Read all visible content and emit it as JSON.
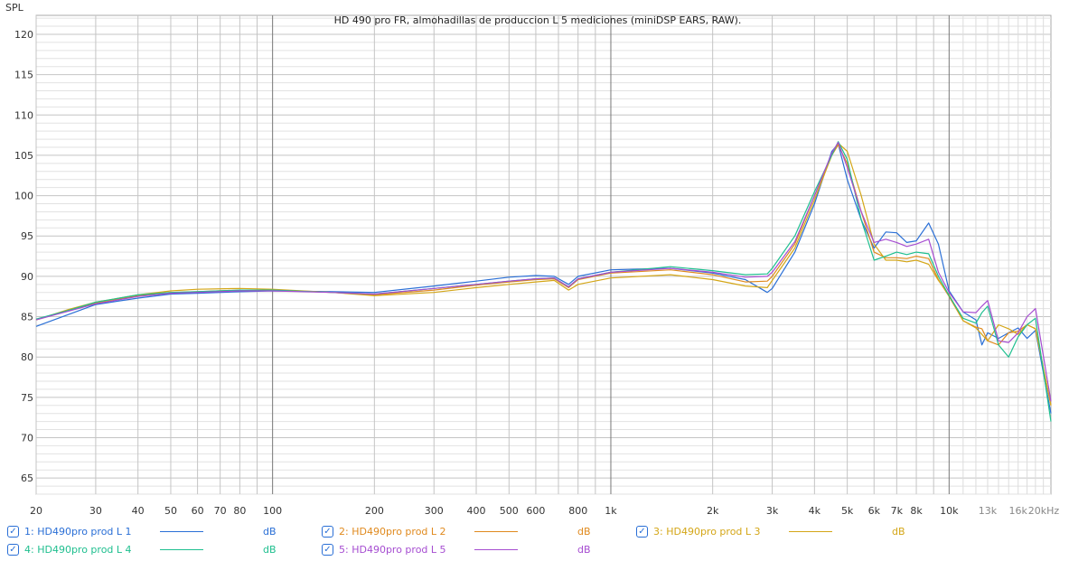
{
  "chart_data": {
    "type": "line",
    "title": "HD 490 pro FR, almohadillas de produccion L 5 mediciones (miniDSP EARS, RAW).",
    "ylabel": "SPL",
    "xlabel": "",
    "xscale": "log",
    "xlim": [
      20,
      20000
    ],
    "ylim": [
      63,
      122.35
    ],
    "yticks": [
      65,
      70,
      75,
      80,
      85,
      90,
      95,
      100,
      105,
      110,
      115,
      120
    ],
    "xticks": [
      {
        "v": 20,
        "l": "20"
      },
      {
        "v": 30,
        "l": "30"
      },
      {
        "v": 40,
        "l": "40"
      },
      {
        "v": 50,
        "l": "50"
      },
      {
        "v": 60,
        "l": "60"
      },
      {
        "v": 70,
        "l": "70"
      },
      {
        "v": 80,
        "l": "80"
      },
      {
        "v": 100,
        "l": "100"
      },
      {
        "v": 200,
        "l": "200"
      },
      {
        "v": 300,
        "l": "300"
      },
      {
        "v": 400,
        "l": "400"
      },
      {
        "v": 500,
        "l": "500"
      },
      {
        "v": 600,
        "l": "600"
      },
      {
        "v": 800,
        "l": "800"
      },
      {
        "v": 1000,
        "l": "1k"
      },
      {
        "v": 2000,
        "l": "2k"
      },
      {
        "v": 3000,
        "l": "3k"
      },
      {
        "v": 4000,
        "l": "4k"
      },
      {
        "v": 5000,
        "l": "5k"
      },
      {
        "v": 6000,
        "l": "6k"
      },
      {
        "v": 7000,
        "l": "7k"
      },
      {
        "v": 8000,
        "l": "8k"
      },
      {
        "v": 10000,
        "l": "10k"
      },
      {
        "v": 13000,
        "l": "13k"
      },
      {
        "v": 16000,
        "l": "16k"
      },
      {
        "v": 20000,
        "l": "20kHz"
      }
    ],
    "x": [
      20,
      25,
      30,
      40,
      50,
      60,
      80,
      100,
      150,
      200,
      300,
      400,
      500,
      600,
      680,
      750,
      800,
      1000,
      1500,
      2000,
      2500,
      2900,
      3000,
      3500,
      4000,
      4500,
      4700,
      5000,
      5500,
      6000,
      6500,
      7000,
      7500,
      8000,
      8700,
      9300,
      10000,
      11000,
      12000,
      12500,
      13000,
      14000,
      15000,
      16000,
      17000,
      18000,
      20000
    ],
    "series": [
      {
        "name": "1: HD490pro prod L 1",
        "unit": "dB",
        "color": "#2a6fd6",
        "values": [
          83.8,
          85.3,
          86.5,
          87.3,
          87.8,
          87.9,
          88.1,
          88.2,
          88.1,
          88.0,
          88.8,
          89.4,
          89.9,
          90.1,
          90.0,
          89.0,
          90.0,
          90.8,
          91.0,
          90.4,
          89.6,
          88.0,
          88.5,
          93,
          99,
          105.5,
          106.4,
          102,
          97,
          93.5,
          95.5,
          95.4,
          94.2,
          94.4,
          96.6,
          94,
          88.2,
          85.6,
          84.6,
          81.5,
          83,
          82.3,
          83,
          83.6,
          82.3,
          83.3,
          73
        ]
      },
      {
        "name": "2: HD490pro prod L 2",
        "unit": "dB",
        "color": "#e08a1e",
        "values": [
          84.6,
          85.8,
          86.7,
          87.6,
          88.0,
          88.1,
          88.3,
          88.3,
          88.0,
          87.7,
          88.3,
          88.9,
          89.3,
          89.6,
          89.7,
          88.6,
          89.6,
          90.4,
          90.8,
          90.2,
          89.3,
          89.4,
          90,
          94,
          100,
          105,
          106.3,
          104,
          98,
          93,
          92.3,
          92.3,
          92.2,
          92.5,
          92.2,
          89.6,
          87.5,
          84.5,
          83.7,
          83.5,
          82,
          81.5,
          83,
          83.2,
          84,
          83.5,
          74
        ]
      },
      {
        "name": "3: HD490pro prod L 3",
        "unit": "dB",
        "color": "#d4a617",
        "values": [
          84.6,
          85.9,
          86.8,
          87.7,
          88.2,
          88.4,
          88.5,
          88.4,
          88.0,
          87.6,
          88.0,
          88.6,
          89.0,
          89.3,
          89.5,
          88.3,
          89.0,
          89.8,
          90.2,
          89.6,
          88.8,
          88.6,
          89.5,
          93.5,
          99.5,
          105,
          106.5,
          105.5,
          100,
          94,
          92,
          92,
          91.8,
          92,
          91.5,
          89.5,
          87.7,
          84.5,
          83.6,
          82.8,
          82,
          84,
          83.5,
          82.8,
          84,
          83.5,
          74
        ]
      },
      {
        "name": "4: HD490pro prod L 4",
        "unit": "dB",
        "color": "#1fbf8f",
        "values": [
          84.7,
          85.8,
          86.8,
          87.7,
          88.0,
          88.1,
          88.3,
          88.3,
          88.0,
          87.8,
          88.5,
          89.0,
          89.4,
          89.7,
          89.8,
          88.7,
          89.7,
          90.5,
          91.2,
          90.7,
          90.2,
          90.3,
          91,
          95,
          100.5,
          105,
          106.7,
          104.5,
          97,
          92,
          92.5,
          93,
          92.7,
          93,
          92.8,
          90,
          87.6,
          84.8,
          84.2,
          85.5,
          86.3,
          81.5,
          80,
          82.5,
          84,
          84.8,
          72
        ]
      },
      {
        "name": "5: HD490pro prod L 5",
        "unit": "dB",
        "color": "#a64dd1",
        "values": [
          84.6,
          85.7,
          86.6,
          87.5,
          87.9,
          88.0,
          88.2,
          88.2,
          88.0,
          87.8,
          88.5,
          89.0,
          89.4,
          89.7,
          89.8,
          88.7,
          89.7,
          90.5,
          91.0,
          90.5,
          89.9,
          90.0,
          90.5,
          94.3,
          100,
          105.3,
          106.6,
          103.5,
          98,
          94.2,
          94.6,
          94.2,
          93.7,
          94,
          94.6,
          90.5,
          88,
          85.6,
          85.5,
          86.3,
          87,
          82,
          81.8,
          83,
          85,
          86,
          74.5
        ]
      }
    ]
  }
}
